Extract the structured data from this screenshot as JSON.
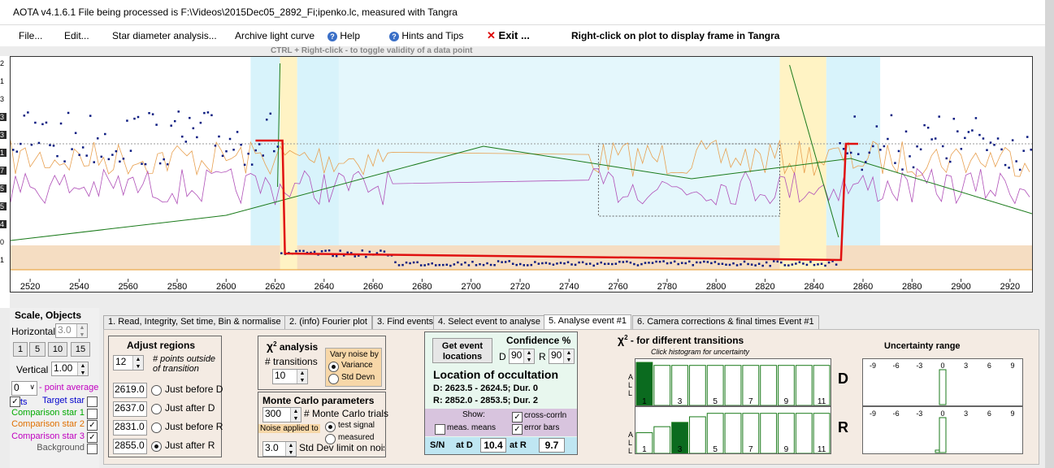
{
  "window": {
    "title": "AOTA v4.1.6.1    File being processed is F:\\Videos\\2015Dec05_2892_Fi;ipenko.lc, measured with Tangra"
  },
  "menu": {
    "file": "File...",
    "edit": "Edit...",
    "star_diameter": "Star diameter analysis...",
    "archive": "Archive light curve",
    "help": "Help",
    "hints": "Hints and Tips",
    "exit": "Exit ...",
    "right_click_note": "Right-click on plot to display frame in Tangra"
  },
  "plot": {
    "hint": "CTRL + Right-click   -  to toggle validity of a data point",
    "x_ticks": [
      "2520",
      "2540",
      "2560",
      "2580",
      "2600",
      "2620",
      "2640",
      "2660",
      "2680",
      "2700",
      "2720",
      "2740",
      "2760",
      "2780",
      "2800",
      "2820",
      "2840",
      "2860",
      "2880",
      "2900",
      "2920"
    ],
    "x_range": [
      2512,
      2929
    ],
    "left_axis_digits": [
      "2",
      "1",
      "3",
      "3",
      "3",
      "1",
      "7",
      "5",
      "5",
      "4",
      "0",
      "1"
    ]
  },
  "scale": {
    "title": "Scale,  Objects",
    "horizontal_label": "Horizontal",
    "horizontal_value": "3.0",
    "buttons": [
      "1",
      "5",
      "10",
      "15"
    ],
    "vertical_label": "Vertical",
    "vertical_value": "1.00",
    "point_avg_value": "0",
    "point_avg_label": "- point average",
    "objects": [
      {
        "label": "Target star",
        "color": "#0000cc",
        "checked": false
      },
      {
        "label": "Comparison star 1",
        "color": "#00aa00",
        "checked": false
      },
      {
        "label": "Comparison star 2",
        "color": "#e07000",
        "checked": true
      },
      {
        "label": "Comparison star 3",
        "color": "#c000c0",
        "checked": true
      },
      {
        "label": "Background",
        "color": "#555555",
        "checked": false
      }
    ],
    "target_prefix": "ts"
  },
  "tabs": [
    "1. Read, Integrity, Set time, Bin & normalise",
    "2. (info) Fourier plot",
    "3. Find events",
    "4. Select event to analyse",
    "5. Analyse event #1",
    "6. Camera corrections & final times Event #1"
  ],
  "adjust": {
    "title": "Adjust regions",
    "points_value": "12",
    "points_label": "# points outside of transition",
    "rows": [
      {
        "value": "2619.0",
        "label": "Just before D"
      },
      {
        "value": "2637.0",
        "label": "Just after D"
      },
      {
        "value": "2831.0",
        "label": "Just before R"
      },
      {
        "value": "2855.0",
        "label": "Just after R"
      }
    ]
  },
  "chi": {
    "title": "analysis",
    "transitions_label": "# transitions",
    "transitions_value": "10",
    "vary_label": "Vary noise by",
    "variance": "Variance",
    "stddev": "Std Devn"
  },
  "monte": {
    "title": "Monte Carlo parameters",
    "trials_value": "300",
    "trials_label": "# Monte Carlo trials",
    "noise_applied": "Noise applied to",
    "test_signal": "test signal",
    "measured": "measured",
    "stddev_value": "3.0",
    "stddev_label": "Std Dev limit on noise"
  },
  "location": {
    "get_event": "Get event locations",
    "confidence_title": "Confidence %",
    "d_label": "D",
    "d_value": "90",
    "r_label": "R",
    "r_value": "90",
    "title": "Location of occultation",
    "d_line": "D: 2623.5 - 2624.5; Dur. 0",
    "r_line": "R: 2852.0 - 2853.5; Dur. 2",
    "show": "Show:",
    "meas_means": "meas. means",
    "cross_corr": "cross-corrln",
    "error_bars": "error bars",
    "sn_label": "S/N",
    "at_d": "at D",
    "sn_d": "10.4",
    "at_r": "at R",
    "sn_r": "9.7"
  },
  "chisq": {
    "title": "- for different transitions",
    "subtitle": "Click histogram for uncertainty",
    "side_label": "A L L",
    "x_labels": [
      "1",
      "3",
      "5",
      "7",
      "9",
      "11"
    ],
    "d_label": "D",
    "r_label": "R",
    "d_heights": [
      1.0,
      0.93,
      0.93,
      0.93,
      0.93,
      0.93,
      0.93,
      0.93,
      0.93,
      0.93,
      0.93
    ],
    "r_heights": [
      0.48,
      0.62,
      0.72,
      0.85,
      0.93,
      0.93,
      0.93,
      0.93,
      0.93,
      0.93,
      0.93
    ],
    "d_selected": 1,
    "r_selected": 3
  },
  "uncertainty": {
    "title": "Uncertainty range",
    "ticks": [
      "-9",
      "-6",
      "-3",
      "0",
      "3",
      "6",
      "9"
    ]
  }
}
